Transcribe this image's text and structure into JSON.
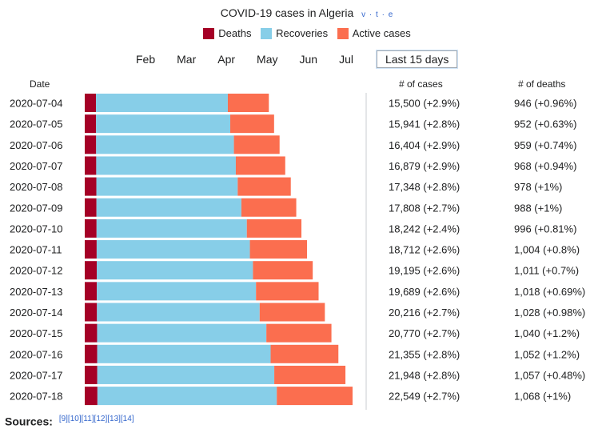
{
  "title": "COVID-19 cases in Algeria",
  "vte": "v · t · e",
  "legend": {
    "deaths": "Deaths",
    "recoveries": "Recoveries",
    "active": "Active cases"
  },
  "colors": {
    "deaths": "#a50026",
    "recoveries": "#87cee8",
    "active": "#fb6e4f"
  },
  "months": [
    "Feb",
    "Mar",
    "Apr",
    "May",
    "Jun",
    "Jul"
  ],
  "selected_range": "Last 15 days",
  "columns": {
    "date": "Date",
    "cases": "# of cases",
    "deaths": "# of deaths"
  },
  "sources_label": "Sources:",
  "sources_refs": "[9][10][11][12][13][14]",
  "chart_data": {
    "type": "bar",
    "orientation": "horizontal",
    "stacked": true,
    "categories": [
      "2020-07-04",
      "2020-07-05",
      "2020-07-06",
      "2020-07-07",
      "2020-07-08",
      "2020-07-09",
      "2020-07-10",
      "2020-07-11",
      "2020-07-12",
      "2020-07-13",
      "2020-07-14",
      "2020-07-15",
      "2020-07-16",
      "2020-07-17",
      "2020-07-18"
    ],
    "series": [
      {
        "name": "Deaths",
        "values": [
          946,
          952,
          959,
          968,
          978,
          988,
          996,
          1004,
          1011,
          1018,
          1028,
          1040,
          1052,
          1057,
          1068
        ]
      },
      {
        "name": "Recoveries",
        "values": [
          11100,
          11300,
          11600,
          11750,
          11900,
          12200,
          12650,
          12900,
          13150,
          13400,
          13700,
          14250,
          14600,
          14900,
          15100
        ]
      },
      {
        "name": "Active cases",
        "values": [
          3454,
          3689,
          3845,
          4161,
          4470,
          4620,
          4596,
          4808,
          5034,
          5271,
          5488,
          5480,
          5703,
          5991,
          6381
        ]
      }
    ],
    "cases_labels": [
      "15,500 (+2.9%)",
      "15,941 (+2.8%)",
      "16,404 (+2.9%)",
      "16,879 (+2.9%)",
      "17,348 (+2.8%)",
      "17,808 (+2.7%)",
      "18,242 (+2.4%)",
      "18,712 (+2.6%)",
      "19,195 (+2.6%)",
      "19,689 (+2.6%)",
      "20,216 (+2.7%)",
      "20,770 (+2.7%)",
      "21,355 (+2.8%)",
      "21,948 (+2.8%)",
      "22,549 (+2.7%)"
    ],
    "deaths_labels": [
      "946 (+0.96%)",
      "952 (+0.63%)",
      "959 (+0.74%)",
      "968 (+0.94%)",
      "978 (+1%)",
      "988 (+1%)",
      "996 (+0.81%)",
      "1,004 (+0.8%)",
      "1,011 (+0.7%)",
      "1,018 (+0.69%)",
      "1,028 (+0.98%)",
      "1,040 (+1.2%)",
      "1,052 (+1.2%)",
      "1,057 (+0.48%)",
      "1,068 (+1%)"
    ],
    "xlim": [
      0,
      22549
    ]
  }
}
